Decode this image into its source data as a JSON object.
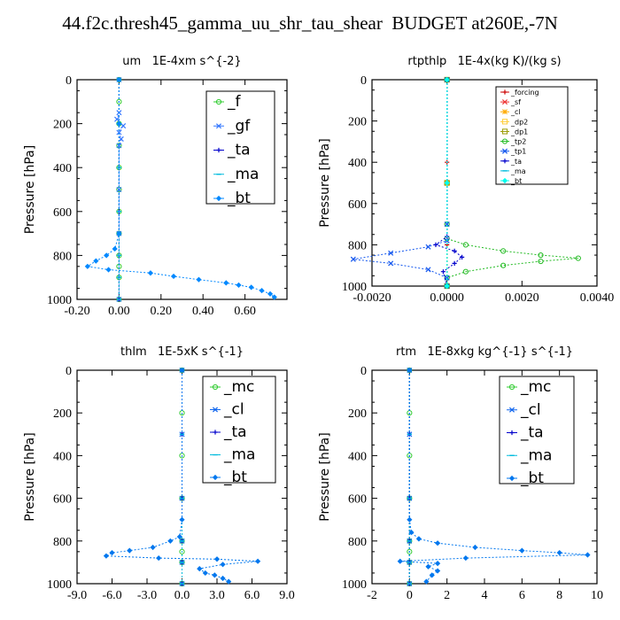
{
  "title": "44.f2c.thresh45_gamma_uu_shr_tau_shear  BUDGET at260E,-7N",
  "chart_data": [
    {
      "type": "line",
      "title": "um   1E-4xm s^{-2}",
      "ylabel": "Pressure [hPa]",
      "xlim": [
        -0.2,
        0.8
      ],
      "ylim": [
        1000,
        0
      ],
      "xticks": [
        -0.2,
        0.0,
        0.2,
        0.4,
        0.6
      ],
      "xtick_labels": [
        "-0.20",
        "0.00",
        "0.20",
        "0.40",
        "0.60"
      ],
      "yticks": [
        0,
        200,
        400,
        600,
        800,
        1000
      ],
      "series": [
        {
          "name": "_f",
          "color": "#33cc33",
          "marker": "circle",
          "x": [
            0,
            0,
            0,
            0,
            0,
            0,
            0,
            0,
            0,
            0,
            0,
            0
          ],
          "y": [
            0,
            100,
            200,
            300,
            400,
            500,
            600,
            700,
            800,
            850,
            900,
            1000
          ]
        },
        {
          "name": "_gf",
          "color": "#3377ff",
          "marker": "cross",
          "x": [
            0,
            0,
            -0.01,
            0.02,
            0.0,
            0.01,
            0,
            0,
            0,
            0
          ],
          "y": [
            0,
            150,
            180,
            210,
            240,
            270,
            300,
            500,
            700,
            1000
          ]
        },
        {
          "name": "_ta",
          "color": "#0000cc",
          "marker": "plus",
          "x": [
            0,
            0,
            0,
            0,
            0,
            0,
            0
          ],
          "y": [
            0,
            200,
            400,
            600,
            800,
            900,
            1000
          ]
        },
        {
          "name": "_ma",
          "color": "#00bbdd",
          "marker": "dash",
          "x": [
            0,
            0,
            0,
            0,
            0,
            0,
            0
          ],
          "y": [
            0,
            200,
            400,
            600,
            800,
            900,
            1000
          ]
        },
        {
          "name": "_bt",
          "color": "#0088ff",
          "marker": "diamond",
          "x": [
            0,
            0,
            0,
            -0.02,
            -0.06,
            -0.11,
            -0.15,
            -0.05,
            0.15,
            0.26,
            0.38,
            0.51,
            0.57,
            0.63,
            0.68,
            0.72,
            0.74
          ],
          "y": [
            0,
            200,
            700,
            770,
            800,
            825,
            850,
            865,
            880,
            895,
            910,
            925,
            935,
            945,
            960,
            975,
            990
          ]
        }
      ],
      "legend": "top-right"
    },
    {
      "type": "line",
      "title": "rtpthlp   1E-4x(kg K)/(kg s)",
      "ylabel": "Pressure [hPa]",
      "xlim": [
        -0.002,
        0.004
      ],
      "ylim": [
        1000,
        0
      ],
      "xticks": [
        -0.002,
        0.0,
        0.002,
        0.004
      ],
      "xtick_labels": [
        "-0.0020",
        "0.0000",
        "0.0020",
        "0.0040"
      ],
      "yticks": [
        0,
        200,
        400,
        600,
        800,
        1000
      ],
      "series": [
        {
          "name": "_forcing",
          "color": "#cc0000",
          "marker": "plus",
          "x": [
            0,
            0,
            0,
            0
          ],
          "y": [
            0,
            400,
            800,
            1000
          ]
        },
        {
          "name": "_sf",
          "color": "#ee3333",
          "marker": "cross",
          "x": [
            0,
            0,
            0
          ],
          "y": [
            0,
            500,
            1000
          ]
        },
        {
          "name": "_cl",
          "color": "#ffaa00",
          "marker": "star",
          "x": [
            0,
            0,
            0
          ],
          "y": [
            0,
            500,
            1000
          ]
        },
        {
          "name": "_dp2",
          "color": "#ffcc33",
          "marker": "square",
          "x": [
            0,
            0,
            0
          ],
          "y": [
            0,
            500,
            1000
          ]
        },
        {
          "name": "_dp1",
          "color": "#999900",
          "marker": "square",
          "x": [
            0,
            0,
            0
          ],
          "y": [
            0,
            500,
            1000
          ]
        },
        {
          "name": "_tp2",
          "color": "#22bb22",
          "marker": "circle",
          "x": [
            0,
            0,
            0,
            0.0005,
            0.0015,
            0.0025,
            0.0035,
            0.0025,
            0.0015,
            0.0005,
            0,
            0
          ],
          "y": [
            0,
            700,
            770,
            800,
            830,
            850,
            865,
            880,
            900,
            930,
            960,
            1000
          ]
        },
        {
          "name": "_tp1",
          "color": "#1155ee",
          "marker": "cross",
          "x": [
            0,
            0,
            0,
            -0.0005,
            -0.0015,
            -0.0025,
            -0.0015,
            -0.0005,
            0,
            0
          ],
          "y": [
            0,
            700,
            780,
            810,
            840,
            870,
            890,
            920,
            960,
            1000
          ]
        },
        {
          "name": "_ta",
          "color": "#0000cc",
          "marker": "plus",
          "x": [
            0,
            0,
            -0.0003,
            0.0002,
            0.0004,
            0.0002,
            -0.0001,
            0
          ],
          "y": [
            0,
            760,
            800,
            830,
            860,
            890,
            930,
            1000
          ]
        },
        {
          "name": "_ma",
          "color": "#00bbdd",
          "marker": "dash",
          "x": [
            0,
            0,
            0
          ],
          "y": [
            0,
            500,
            1000
          ]
        },
        {
          "name": "_bt",
          "color": "#00ffee",
          "marker": "diamond",
          "x": [
            0,
            0,
            0
          ],
          "y": [
            0,
            500,
            1000
          ]
        }
      ],
      "legend": "top-right"
    },
    {
      "type": "line",
      "title": "thlm   1E-5xK s^{-1}",
      "ylabel": "Pressure [hPa]",
      "xlim": [
        -9,
        9
      ],
      "ylim": [
        1000,
        0
      ],
      "xticks": [
        -9,
        -6,
        -3,
        0,
        3,
        6,
        9
      ],
      "xtick_labels": [
        "-9.0",
        "-6.0",
        "-3.0",
        "0.0",
        "3.0",
        "6.0",
        "9.0"
      ],
      "yticks": [
        0,
        200,
        400,
        600,
        800,
        1000
      ],
      "series": [
        {
          "name": "_mc",
          "color": "#33cc33",
          "marker": "circle",
          "x": [
            0,
            0,
            0,
            0,
            0,
            0,
            0,
            0
          ],
          "y": [
            0,
            200,
            400,
            600,
            800,
            850,
            900,
            1000
          ]
        },
        {
          "name": "_cl",
          "color": "#1166ee",
          "marker": "cross",
          "x": [
            0,
            0,
            0,
            0,
            0,
            0
          ],
          "y": [
            0,
            300,
            600,
            800,
            900,
            1000
          ]
        },
        {
          "name": "_ta",
          "color": "#0000cc",
          "marker": "plus",
          "x": [
            0,
            0,
            0,
            0,
            0,
            0
          ],
          "y": [
            0,
            300,
            600,
            800,
            900,
            1000
          ]
        },
        {
          "name": "_ma",
          "color": "#00bbdd",
          "marker": "dash",
          "x": [
            0,
            0,
            0,
            0,
            0,
            0
          ],
          "y": [
            0,
            300,
            600,
            800,
            900,
            1000
          ]
        },
        {
          "name": "_bt",
          "color": "#0077ee",
          "marker": "diamond",
          "x": [
            0,
            0,
            -0.2,
            -1.0,
            -2.5,
            -4.5,
            -6.0,
            -6.5,
            -2.0,
            3.0,
            6.5,
            3.5,
            1.5,
            2.0,
            2.8,
            3.5,
            4.0
          ],
          "y": [
            0,
            700,
            780,
            800,
            830,
            845,
            855,
            870,
            880,
            885,
            895,
            910,
            930,
            950,
            960,
            975,
            990
          ]
        }
      ],
      "legend": "top-right"
    },
    {
      "type": "line",
      "title": "rtm   1E-8xkg kg^{-1} s^{-1}",
      "ylabel": "Pressure [hPa]",
      "xlim": [
        -2,
        10
      ],
      "ylim": [
        1000,
        0
      ],
      "xticks": [
        -2,
        0,
        2,
        4,
        6,
        8,
        10
      ],
      "xtick_labels": [
        "-2",
        "0",
        "2",
        "4",
        "6",
        "8",
        "10"
      ],
      "yticks": [
        0,
        200,
        400,
        600,
        800,
        1000
      ],
      "series": [
        {
          "name": "_mc",
          "color": "#33cc33",
          "marker": "circle",
          "x": [
            0,
            0,
            0,
            0,
            0,
            0,
            0,
            0
          ],
          "y": [
            0,
            200,
            400,
            600,
            800,
            850,
            900,
            1000
          ]
        },
        {
          "name": "_cl",
          "color": "#1166ee",
          "marker": "cross",
          "x": [
            0,
            0,
            0,
            0,
            0,
            0
          ],
          "y": [
            0,
            300,
            600,
            800,
            900,
            1000
          ]
        },
        {
          "name": "_ta",
          "color": "#0000cc",
          "marker": "plus",
          "x": [
            0,
            0,
            0,
            0,
            0,
            0
          ],
          "y": [
            0,
            300,
            600,
            800,
            900,
            1000
          ]
        },
        {
          "name": "_ma",
          "color": "#00bbdd",
          "marker": "dash",
          "x": [
            0,
            0,
            0,
            0,
            0,
            0
          ],
          "y": [
            0,
            300,
            600,
            800,
            900,
            1000
          ]
        },
        {
          "name": "_bt",
          "color": "#0077ee",
          "marker": "diamond",
          "x": [
            0,
            0,
            0.1,
            0.5,
            1.5,
            3.5,
            6.0,
            8.0,
            9.5,
            3.0,
            -0.5,
            1.5,
            1.0,
            1.5,
            1.2,
            0.9
          ],
          "y": [
            0,
            700,
            760,
            790,
            810,
            830,
            845,
            855,
            865,
            880,
            895,
            905,
            920,
            940,
            960,
            990
          ]
        }
      ],
      "legend": "top-right"
    }
  ]
}
